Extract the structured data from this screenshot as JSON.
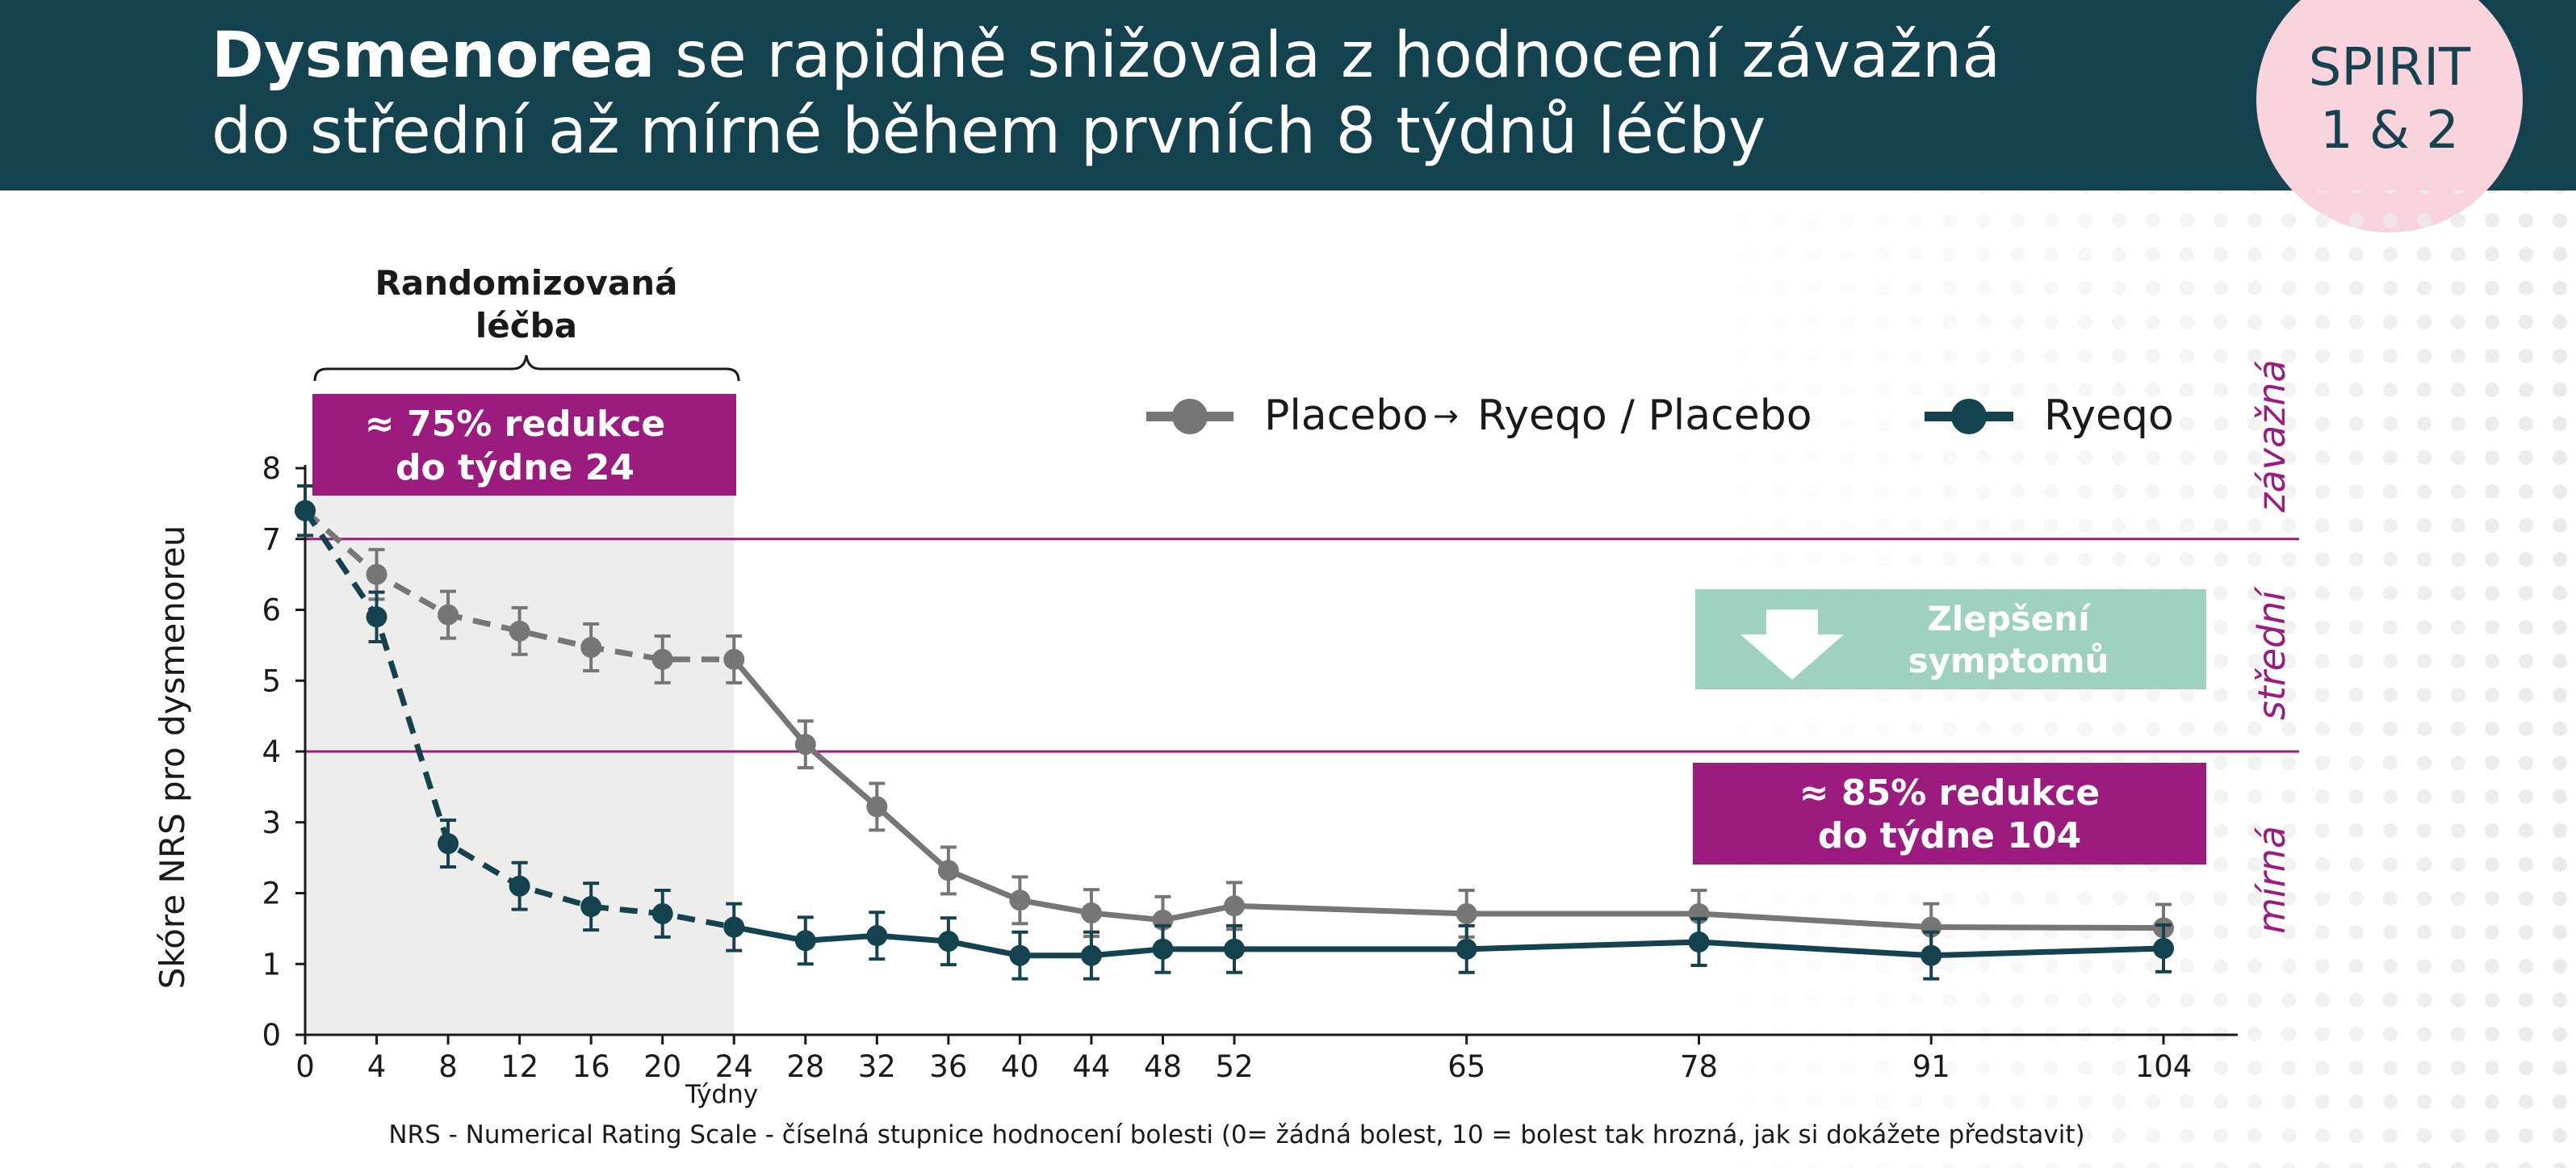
{
  "header": {
    "title_bold": "Dysmenorea",
    "title_rest_line1": " se rapidně snižovala z hodnocení závažná",
    "title_line2": "do střední až mírné během prvních 8 týdnů léčby",
    "badge_line1": "SPIRIT",
    "badge_line2": "1 & 2",
    "background_color": "#14424f",
    "badge_color": "#f8d3db"
  },
  "randomized": {
    "label_line1": "Randomizovaná",
    "label_line2": "léčba"
  },
  "callouts": {
    "reduction24_line1": "≈ 75% redukce",
    "reduction24_line2": "do týdne 24",
    "improvement_line1": "Zlepšení",
    "improvement_line2": "symptomů",
    "reduction104_line1": "≈ 85% redukce",
    "reduction104_line2": "do týdne 104",
    "magenta": "#9c1b7e",
    "teal_light": "#9fd1c1"
  },
  "severity_zones": {
    "severe": "závažná",
    "moderate": "střední",
    "mild": "mírná"
  },
  "footnote": "NRS - Numerical Rating Scale - číselná stupnice hodnocení bolesti (0= žádná bolest, 10 = bolest tak hrozná, jak si dokážete představit)",
  "chart_data": {
    "type": "line",
    "xlabel": "Týdny",
    "ylabel": "Skóre NRS pro dysmenoreu",
    "xlim": [
      0,
      108
    ],
    "ylim": [
      0,
      8
    ],
    "x_ticks": [
      0,
      4,
      8,
      12,
      16,
      20,
      24,
      28,
      32,
      36,
      40,
      44,
      48,
      52,
      65,
      78,
      91,
      104
    ],
    "y_ticks": [
      0,
      1,
      2,
      3,
      4,
      5,
      6,
      7,
      8
    ],
    "thresholds": [
      7,
      4
    ],
    "randomized_period": [
      0,
      24
    ],
    "legend": {
      "placebo_a": "Placebo",
      "placebo_arrow": "→",
      "placebo_b": "Ryeqo / Placebo",
      "ryeqo": "Ryeqo"
    },
    "series": [
      {
        "name": "Placebo → Ryeqo / Placebo",
        "color": "#767676",
        "x": [
          0,
          4,
          8,
          12,
          16,
          20,
          24,
          28,
          32,
          36,
          40,
          44,
          48,
          52,
          65,
          78,
          91,
          104
        ],
        "values": [
          7.4,
          6.5,
          5.93,
          5.7,
          5.47,
          5.3,
          5.3,
          4.1,
          3.22,
          2.32,
          1.9,
          1.72,
          1.62,
          1.82,
          1.71,
          1.71,
          1.52,
          1.51
        ],
        "error": [
          0.35,
          0.35,
          0.33,
          0.33,
          0.33,
          0.33,
          0.33,
          0.33,
          0.33,
          0.33,
          0.33,
          0.33,
          0.33,
          0.33,
          0.33,
          0.33,
          0.33,
          0.33
        ]
      },
      {
        "name": "Ryeqo",
        "color": "#14424f",
        "x": [
          0,
          4,
          8,
          12,
          16,
          20,
          24,
          28,
          32,
          36,
          40,
          44,
          48,
          52,
          65,
          78,
          91,
          104
        ],
        "values": [
          7.4,
          5.9,
          2.7,
          2.1,
          1.81,
          1.71,
          1.52,
          1.33,
          1.4,
          1.32,
          1.12,
          1.12,
          1.21,
          1.21,
          1.21,
          1.31,
          1.12,
          1.22
        ],
        "error": [
          0.35,
          0.35,
          0.33,
          0.33,
          0.33,
          0.33,
          0.33,
          0.33,
          0.33,
          0.33,
          0.33,
          0.33,
          0.33,
          0.33,
          0.33,
          0.33,
          0.33,
          0.33
        ]
      }
    ]
  }
}
